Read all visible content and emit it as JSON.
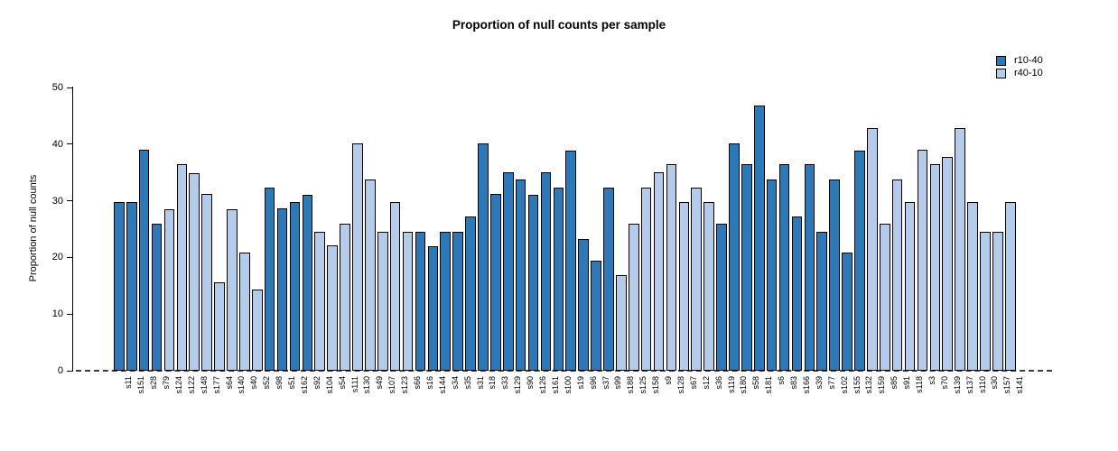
{
  "title": "Proportion of null counts per sample",
  "ylabel": "Proportion of null counts",
  "legend": {
    "items": [
      {
        "label": "r10-40",
        "color": "#2b79b9"
      },
      {
        "label": "r40-10",
        "color": "#b4cbe9"
      }
    ]
  },
  "chart_data": {
    "type": "bar",
    "title": "Proportion of null counts per sample",
    "xlabel": "",
    "ylabel": "Proportion of null counts",
    "ylim": [
      0,
      50
    ],
    "yticks": [
      0,
      10,
      20,
      30,
      40,
      50
    ],
    "grid": false,
    "legend_position": "top-right",
    "zero_line_style": "dashed",
    "colors": {
      "r10-40": "#2b79b9",
      "r40-10": "#b4cbe9"
    },
    "categories": [
      "s11",
      "s151",
      "s28",
      "s79",
      "s124",
      "s122",
      "s148",
      "s177",
      "s64",
      "s140",
      "s40",
      "s52",
      "s98",
      "s51",
      "s162",
      "s92",
      "s104",
      "s54",
      "s111",
      "s130",
      "s49",
      "s107",
      "s123",
      "s66",
      "s16",
      "s144",
      "s34",
      "s35",
      "s31",
      "s18",
      "s33",
      "s129",
      "s90",
      "s126",
      "s161",
      "s100",
      "s19",
      "s96",
      "s37",
      "s99",
      "s188",
      "s125",
      "s158",
      "s9",
      "s128",
      "s67",
      "s12",
      "s36",
      "s119",
      "s180",
      "s58",
      "s181",
      "s6",
      "s83",
      "s166",
      "s39",
      "s77",
      "s102",
      "s155",
      "s132",
      "s159",
      "s85",
      "s91",
      "s118",
      "s3",
      "s70",
      "s139",
      "s137",
      "s110",
      "s30",
      "s157",
      "s141"
    ],
    "values": [
      29.8,
      29.8,
      39.0,
      25.9,
      28.5,
      36.4,
      34.9,
      31.2,
      15.6,
      28.5,
      20.8,
      14.3,
      32.4,
      28.6,
      29.8,
      31.1,
      24.5,
      22.1,
      26.0,
      40.2,
      33.8,
      24.5,
      29.8,
      24.5,
      24.5,
      22.0,
      24.5,
      24.5,
      27.3,
      40.2,
      31.2,
      35.0,
      33.8,
      31.1,
      35.0,
      32.4,
      38.9,
      23.3,
      19.5,
      32.4,
      16.8,
      26.0,
      32.4,
      35.0,
      36.4,
      29.8,
      32.4,
      29.8,
      26.0,
      40.2,
      36.4,
      46.8,
      33.7,
      36.4,
      27.3,
      36.4,
      24.5,
      33.7,
      20.8,
      38.9,
      42.8,
      26.0,
      33.8,
      29.8,
      39.0,
      36.4,
      37.7,
      42.8,
      29.8,
      24.5,
      24.5,
      29.8
    ],
    "groups": [
      "r10-40",
      "r10-40",
      "r10-40",
      "r10-40",
      "r40-10",
      "r40-10",
      "r40-10",
      "r40-10",
      "r40-10",
      "r40-10",
      "r40-10",
      "r40-10",
      "r10-40",
      "r10-40",
      "r10-40",
      "r10-40",
      "r40-10",
      "r40-10",
      "r40-10",
      "r40-10",
      "r40-10",
      "r40-10",
      "r40-10",
      "r40-10",
      "r10-40",
      "r10-40",
      "r10-40",
      "r10-40",
      "r10-40",
      "r10-40",
      "r10-40",
      "r10-40",
      "r10-40",
      "r10-40",
      "r10-40",
      "r10-40",
      "r10-40",
      "r10-40",
      "r10-40",
      "r10-40",
      "r40-10",
      "r40-10",
      "r40-10",
      "r40-10",
      "r40-10",
      "r40-10",
      "r40-10",
      "r40-10",
      "r10-40",
      "r10-40",
      "r10-40",
      "r10-40",
      "r10-40",
      "r10-40",
      "r10-40",
      "r10-40",
      "r10-40",
      "r10-40",
      "r10-40",
      "r10-40",
      "r40-10",
      "r40-10",
      "r40-10",
      "r40-10",
      "r40-10",
      "r40-10",
      "r40-10",
      "r40-10",
      "r40-10",
      "r40-10",
      "r40-10",
      "r40-10"
    ]
  }
}
